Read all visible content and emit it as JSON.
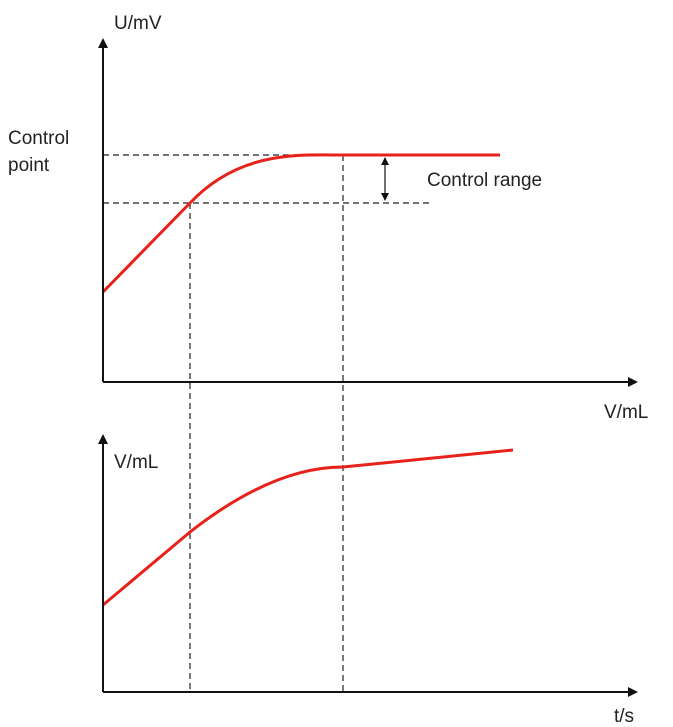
{
  "top_plot": {
    "y_axis_label": "U/mV",
    "x_axis_label": "V/mL",
    "control_point": [
      "Control",
      "point"
    ],
    "control_range": "Control range"
  },
  "bottom_plot": {
    "y_axis_label": "V/mL",
    "x_axis_label": "t/s"
  }
}
